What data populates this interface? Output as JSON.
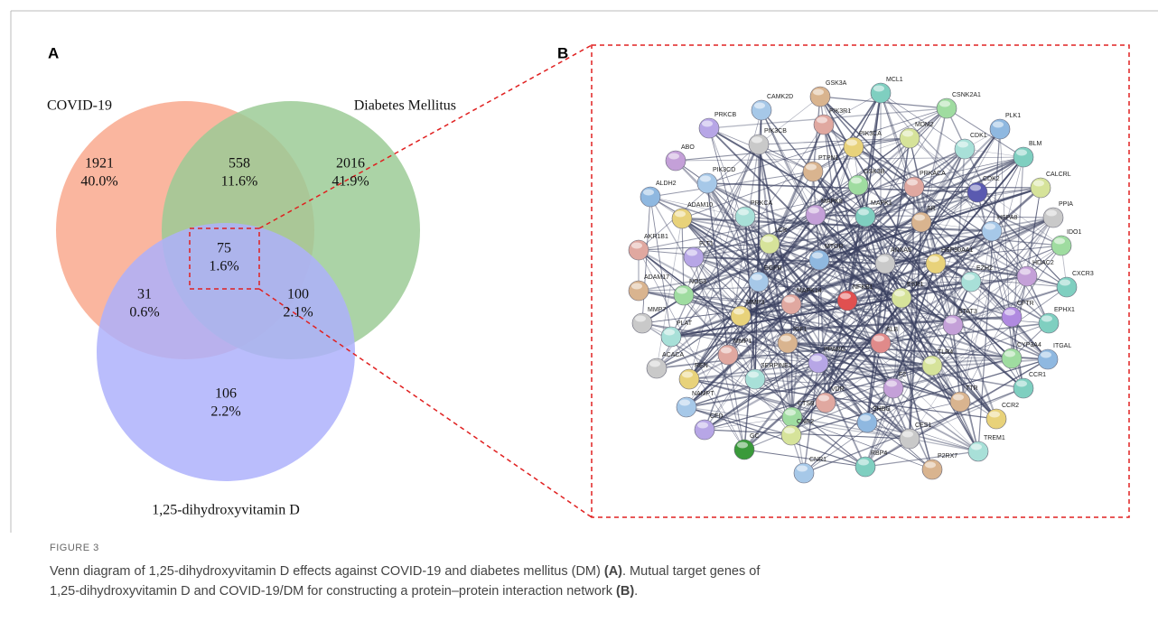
{
  "panels": {
    "a": "A",
    "b": "B"
  },
  "venn": {
    "sets": [
      "COVID-19",
      "Diabetes Mellitus",
      "1,25-dihydroxyvitamin D"
    ],
    "regions": [
      {
        "count": 1921,
        "percent": "40.0%"
      },
      {
        "count": 558,
        "percent": "11.6%"
      },
      {
        "count": 2016,
        "percent": "41.9%"
      },
      {
        "count": 75,
        "percent": "1.6%"
      },
      {
        "count": 31,
        "percent": "0.6%"
      },
      {
        "count": 100,
        "percent": "2.1%"
      },
      {
        "count": 106,
        "percent": "2.2%"
      }
    ]
  },
  "network": {
    "nodes": [
      "MCL1",
      "GSK3A",
      "CAMK2D",
      "CSNK2A1",
      "PIK3R1",
      "PRKCB",
      "MDM2",
      "PLK1",
      "PIK3CB",
      "PIK3CA",
      "CDK1",
      "ABO",
      "BLM",
      "PTPN1",
      "PIK3CD",
      "GSK3B",
      "PRKACA",
      "CDK2",
      "CALCRL",
      "ALDH2",
      "PPIA",
      "ADAM10",
      "PRKCA",
      "MAPK8",
      "MAPK1",
      "AR",
      "HSPA8",
      "IDO1",
      "AKR1B1",
      "FLT1",
      "LCK",
      "MTOR",
      "ANXA5",
      "HSP90AA1",
      "EZH2",
      "HDAC2",
      "CXCR3",
      "ADAM17",
      "EGFR",
      "NOS3",
      "MAPK14",
      "NFKB1",
      "ESR1",
      "CFTR",
      "MMP7",
      "MMP3",
      "PLAT",
      "STAT3",
      "EPHX1",
      "IGF1",
      "ALB",
      "CYP3A4",
      "MMP1",
      "PPARG",
      "TLR4",
      "ITGAL",
      "ACACA",
      "REN",
      "SERPINE1",
      "F2",
      "CCR1",
      "TTR",
      "NAMPT",
      "CTSB",
      "VDR",
      "CFD",
      "CNR2",
      "SHBG",
      "CES1",
      "CCR2",
      "TREM1",
      "GC",
      "RBP4",
      "P2RX7",
      "CNR1"
    ]
  },
  "caption": {
    "label": "FIGURE 3",
    "line1": "Venn diagram of 1,25-dihydroxyvitamin D effects against COVID-19 and diabetes mellitus (DM) ",
    "ref_a": "(A)",
    "line1_end": ". Mutual target genes of",
    "line2": "1,25-dihydroxyvitamin D and COVID-19/DM for constructing a protein–protein interaction network ",
    "ref_b": "(B)",
    "line2_end": "."
  }
}
